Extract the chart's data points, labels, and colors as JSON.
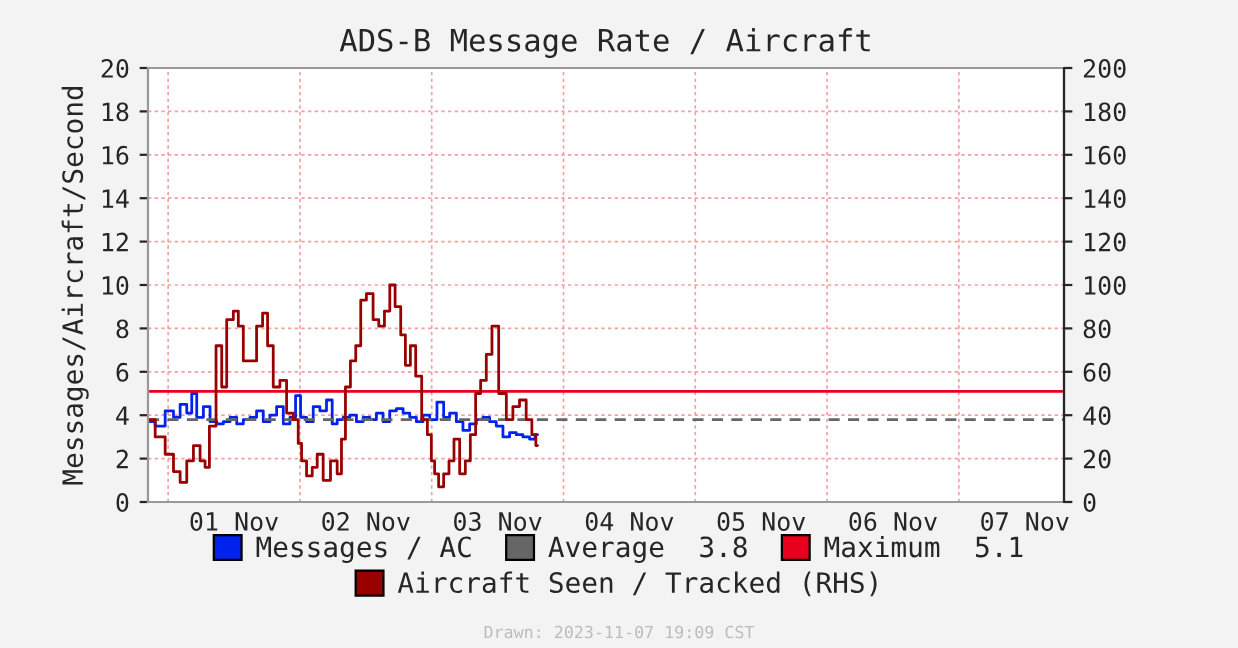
{
  "chart_data": {
    "type": "step",
    "title": "ADS-B Message Rate / Aircraft",
    "ylabel": "Messages/Aircraft/Second",
    "xlim": [
      "2023-10-31T20:20",
      "2023-11-07T19:09"
    ],
    "xticks": [
      {
        "value": "2023-11-01T00:00",
        "label": null
      },
      {
        "value": "2023-11-01T12:00",
        "label": "01 Nov"
      },
      {
        "value": "2023-11-02T00:00",
        "label": null
      },
      {
        "value": "2023-11-02T12:00",
        "label": "02 Nov"
      },
      {
        "value": "2023-11-03T00:00",
        "label": null
      },
      {
        "value": "2023-11-03T12:00",
        "label": "03 Nov"
      },
      {
        "value": "2023-11-04T00:00",
        "label": null
      },
      {
        "value": "2023-11-04T12:00",
        "label": "04 Nov"
      },
      {
        "value": "2023-11-05T00:00",
        "label": null
      },
      {
        "value": "2023-11-05T12:00",
        "label": "05 Nov"
      },
      {
        "value": "2023-11-06T00:00",
        "label": null
      },
      {
        "value": "2023-11-06T12:00",
        "label": "06 Nov"
      },
      {
        "value": "2023-11-07T00:00",
        "label": null
      },
      {
        "value": "2023-11-07T12:00",
        "label": "07 Nov"
      }
    ],
    "ylim": [
      0,
      20
    ],
    "yticks": [
      0,
      2,
      4,
      6,
      8,
      10,
      12,
      14,
      16,
      18,
      20
    ],
    "y2lim": [
      0,
      200
    ],
    "y2ticks": [
      0,
      20,
      40,
      60,
      80,
      100,
      120,
      140,
      160,
      180,
      200
    ],
    "grid": true,
    "legend": "bottom",
    "line_style": "solid",
    "ref_lines": [
      {
        "axis": "y",
        "value": 3.8,
        "label": "Average  3.8",
        "color": "#666666",
        "line_style": "dashed"
      },
      {
        "axis": "y",
        "value": 5.1,
        "label": "Maximum  5.1",
        "color": "#e8001c",
        "line_style": "solid"
      }
    ],
    "series": [
      {
        "name": "Messages / AC",
        "color": "#0022ee",
        "x": [
          "2023-10-31T20:44",
          "2023-10-31T22:33",
          "2023-11-01T00:22",
          "2023-11-01T01:35",
          "2023-11-01T02:47",
          "2023-11-01T04:00",
          "2023-11-01T04:36",
          "2023-11-01T05:49",
          "2023-11-01T07:02",
          "2023-11-01T08:14",
          "2023-11-01T09:27",
          "2023-11-01T10:40",
          "2023-11-01T11:53",
          "2023-11-01T13:05",
          "2023-11-01T14:18",
          "2023-11-01T15:30",
          "2023-11-01T16:43",
          "2023-11-01T17:56",
          "2023-11-01T19:09",
          "2023-11-01T20:22",
          "2023-11-01T21:35",
          "2023-11-01T22:47",
          "2023-11-01T23:38",
          "2023-11-02T00:36",
          "2023-11-02T01:49",
          "2023-11-02T03:02",
          "2023-11-02T04:14",
          "2023-11-02T05:27",
          "2023-11-02T06:18",
          "2023-11-02T07:16",
          "2023-11-02T08:29",
          "2023-11-02T09:41",
          "2023-11-02T10:54",
          "2023-11-02T12:07",
          "2023-11-02T13:20",
          "2023-11-02T14:32",
          "2023-11-02T15:45",
          "2023-11-02T16:58",
          "2023-11-02T18:11",
          "2023-11-02T19:24",
          "2023-11-02T20:36",
          "2023-11-02T21:49",
          "2023-11-02T23:02",
          "2023-11-03T00:14",
          "2023-11-03T01:41",
          "2023-11-03T02:40",
          "2023-11-03T03:53",
          "2023-11-03T05:05",
          "2023-11-03T06:18",
          "2023-11-03T07:31",
          "2023-11-03T08:44",
          "2023-11-03T09:56",
          "2023-11-03T11:09",
          "2023-11-03T12:22",
          "2023-11-03T13:35",
          "2023-11-03T14:47",
          "2023-11-03T16:00",
          "2023-11-03T17:13",
          "2023-11-03T18:25",
          "2023-11-03T19:16"
        ],
        "values": [
          3.7,
          3.5,
          4.2,
          3.9,
          4.5,
          4.1,
          5.0,
          3.9,
          4.4,
          3.7,
          3.6,
          3.7,
          3.9,
          3.6,
          3.8,
          3.9,
          4.2,
          3.7,
          4.0,
          4.4,
          3.6,
          3.9,
          4.9,
          3.9,
          3.7,
          4.4,
          4.2,
          4.7,
          3.6,
          3.8,
          3.9,
          4.0,
          3.7,
          3.9,
          3.8,
          4.1,
          3.7,
          4.2,
          4.3,
          4.1,
          3.9,
          3.7,
          4.0,
          3.8,
          4.6,
          3.9,
          4.1,
          3.7,
          3.3,
          3.6,
          3.8,
          3.9,
          3.7,
          3.5,
          3.0,
          3.2,
          3.1,
          3.0,
          2.9,
          3.1
        ]
      },
      {
        "name": "Aircraft Seen / Tracked (RHS)",
        "color": "#990000",
        "axis": "y2",
        "x": [
          "2023-10-31T20:44",
          "2023-10-31T22:33",
          "2023-11-01T00:22",
          "2023-11-01T01:35",
          "2023-11-01T02:47",
          "2023-11-01T04:00",
          "2023-11-01T05:13",
          "2023-11-01T06:25",
          "2023-11-01T07:02",
          "2023-11-01T08:00",
          "2023-11-01T09:27",
          "2023-11-01T10:04",
          "2023-11-01T11:16",
          "2023-11-01T12:29",
          "2023-11-01T13:05",
          "2023-11-01T14:18",
          "2023-11-01T15:30",
          "2023-11-01T16:43",
          "2023-11-01T17:41",
          "2023-11-01T18:32",
          "2023-11-01T19:45",
          "2023-11-01T20:58",
          "2023-11-01T22:11",
          "2023-11-01T23:23",
          "2023-11-02T00:00",
          "2023-11-02T00:36",
          "2023-11-02T01:49",
          "2023-11-02T02:40",
          "2023-11-02T03:38",
          "2023-11-02T04:50",
          "2023-11-02T06:18",
          "2023-11-02T07:16",
          "2023-11-02T07:52",
          "2023-11-02T08:43",
          "2023-11-02T09:41",
          "2023-11-02T10:39",
          "2023-11-02T11:30",
          "2023-11-02T12:43",
          "2023-11-02T13:56",
          "2023-11-02T14:47",
          "2023-11-02T16:00",
          "2023-11-02T16:44",
          "2023-11-02T17:56",
          "2023-11-02T18:47",
          "2023-11-02T19:38",
          "2023-11-02T20:36",
          "2023-11-02T21:34",
          "2023-11-02T22:47",
          "2023-11-02T23:38",
          "2023-11-03T00:14",
          "2023-11-03T00:50",
          "2023-11-03T01:41",
          "2023-11-03T02:40",
          "2023-11-03T03:38",
          "2023-11-03T04:29",
          "2023-11-03T05:42",
          "2023-11-03T06:33",
          "2023-11-03T07:31",
          "2023-11-03T08:29",
          "2023-11-03T09:20",
          "2023-11-03T10:33",
          "2023-11-03T11:24",
          "2023-11-03T13:00",
          "2023-11-03T14:11",
          "2023-11-03T15:23",
          "2023-11-03T16:36",
          "2023-11-03T17:49",
          "2023-11-03T18:40",
          "2023-11-03T19:16"
        ],
        "values": [
          38,
          30,
          22,
          14,
          9,
          19,
          26,
          19,
          16,
          35,
          72,
          53,
          84,
          88,
          81,
          65,
          65,
          81,
          87,
          72,
          53,
          56,
          41,
          38,
          27,
          19,
          12,
          16,
          22,
          10,
          19,
          13,
          29,
          53,
          65,
          72,
          93,
          96,
          84,
          81,
          88,
          100,
          90,
          77,
          63,
          72,
          58,
          38,
          31,
          19,
          13,
          7,
          13,
          19,
          29,
          13,
          19,
          31,
          50,
          56,
          68,
          81,
          50,
          38,
          44,
          47,
          38,
          31,
          26
        ]
      }
    ],
    "annotations": [
      "Drawn: 2023-11-07 19:09 CST"
    ]
  }
}
